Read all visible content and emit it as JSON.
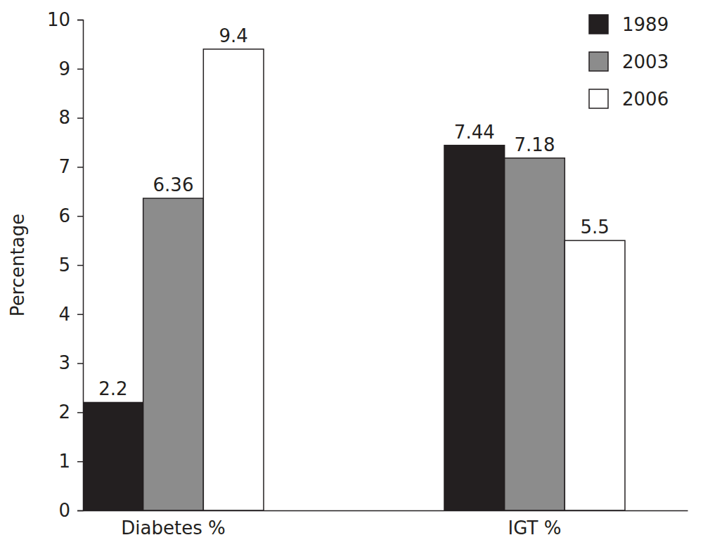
{
  "chart_data": {
    "type": "bar",
    "y_label": "Percentage",
    "categories": [
      "Diabetes %",
      "IGT %"
    ],
    "series": [
      {
        "name": "1989",
        "color": "#231f20",
        "values": [
          2.2,
          7.44
        ]
      },
      {
        "name": "2003",
        "color": "#8c8c8c",
        "values": [
          6.36,
          7.18
        ]
      },
      {
        "name": "2006",
        "color": "#ffffff",
        "values": [
          9.4,
          5.5
        ]
      }
    ],
    "ylim": [
      0,
      10
    ],
    "yticks": [
      0,
      1,
      2,
      3,
      4,
      5,
      6,
      7,
      8,
      9,
      10
    ],
    "legend": "top-right",
    "data_labels": true,
    "grid": false
  }
}
